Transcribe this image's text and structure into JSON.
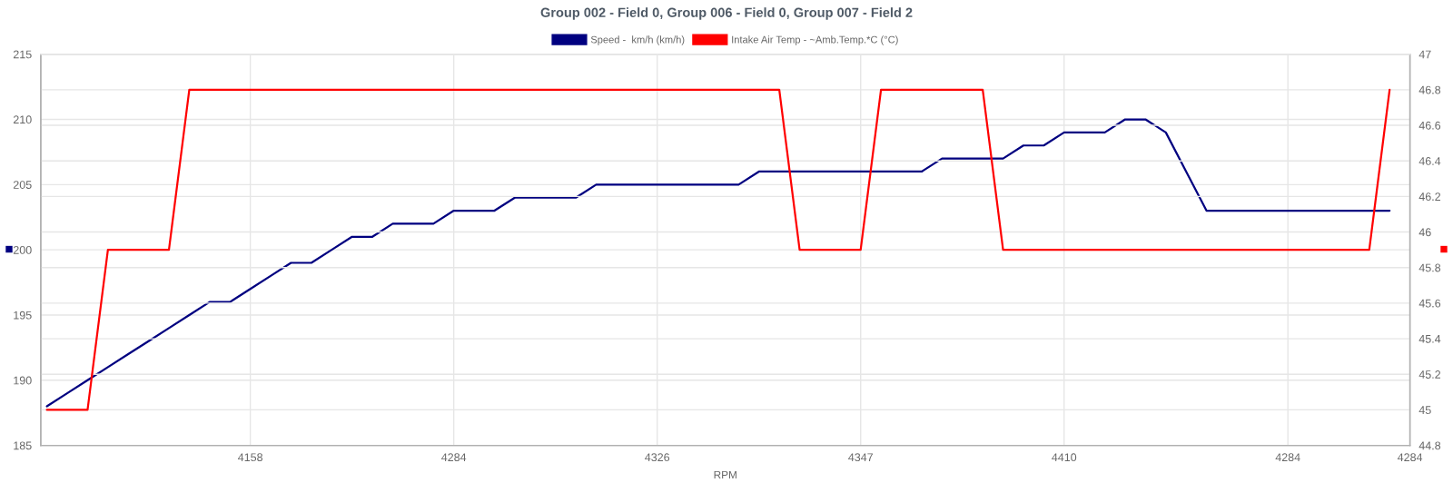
{
  "chart_data": {
    "type": "line",
    "title": "Group 002 - Field 0, Group 006 - Field 0, Group 007 - Field 2",
    "xlabel": "RPM",
    "ylabel": "■",
    "y2label": "■",
    "categories": [
      null,
      null,
      null,
      null,
      null,
      null,
      null,
      null,
      null,
      null,
      "4158",
      null,
      null,
      null,
      null,
      null,
      null,
      null,
      null,
      null,
      "4284",
      null,
      null,
      null,
      null,
      null,
      null,
      null,
      null,
      null,
      "4326",
      null,
      null,
      null,
      null,
      null,
      null,
      null,
      null,
      null,
      "4347",
      null,
      null,
      null,
      null,
      null,
      null,
      null,
      null,
      null,
      "4410",
      null,
      null,
      null,
      null,
      null,
      null,
      null,
      null,
      null,
      null,
      "4284",
      null,
      null,
      null,
      null,
      null,
      "4284"
    ],
    "ylim": [
      185,
      215
    ],
    "yticks": [
      185,
      190,
      195,
      200,
      205,
      210,
      215
    ],
    "y2lim": [
      44.8,
      47
    ],
    "y2ticks": [
      44.8,
      45,
      45.2,
      45.4,
      45.6,
      45.8,
      46,
      46.2,
      46.4,
      46.6,
      46.8,
      47
    ],
    "series": [
      {
        "name": "Speed -  km/h (km/h)",
        "color": "#000080",
        "values": [
          188,
          189,
          190,
          191,
          192,
          193,
          194,
          195,
          196,
          196,
          197,
          198,
          199,
          199,
          200,
          201,
          201,
          202,
          202,
          202,
          203,
          203,
          203,
          204,
          204,
          204,
          204,
          205,
          205,
          205,
          205,
          205,
          205,
          205,
          205,
          206,
          206,
          206,
          206,
          206,
          206,
          206,
          206,
          206,
          207,
          207,
          207,
          207,
          208,
          208,
          209,
          209,
          209,
          210,
          210,
          209,
          206,
          203,
          203,
          203,
          203,
          203,
          203,
          203,
          203,
          203,
          203,
          null
        ]
      },
      {
        "name": "Intake Air Temp - ~Amb.Temp.*C (°C)",
        "color": "#ff0000",
        "axis": "y2",
        "values": [
          45,
          45,
          45,
          45.9,
          45.9,
          45.9,
          45.9,
          46.8,
          46.8,
          46.8,
          46.8,
          46.8,
          46.8,
          46.8,
          46.8,
          46.8,
          46.8,
          46.8,
          46.8,
          46.8,
          46.8,
          46.8,
          46.8,
          46.8,
          46.8,
          46.8,
          46.8,
          46.8,
          46.8,
          46.8,
          46.8,
          46.8,
          46.8,
          46.8,
          46.8,
          46.8,
          46.8,
          45.9,
          45.9,
          45.9,
          45.9,
          46.8,
          46.8,
          46.8,
          46.8,
          46.8,
          46.8,
          45.9,
          45.9,
          45.9,
          45.9,
          45.9,
          45.9,
          45.9,
          45.9,
          45.9,
          45.9,
          45.9,
          45.9,
          45.9,
          45.9,
          45.9,
          45.9,
          45.9,
          45.9,
          45.9,
          46.8,
          null
        ]
      }
    ],
    "grid": true,
    "legend": "top"
  }
}
